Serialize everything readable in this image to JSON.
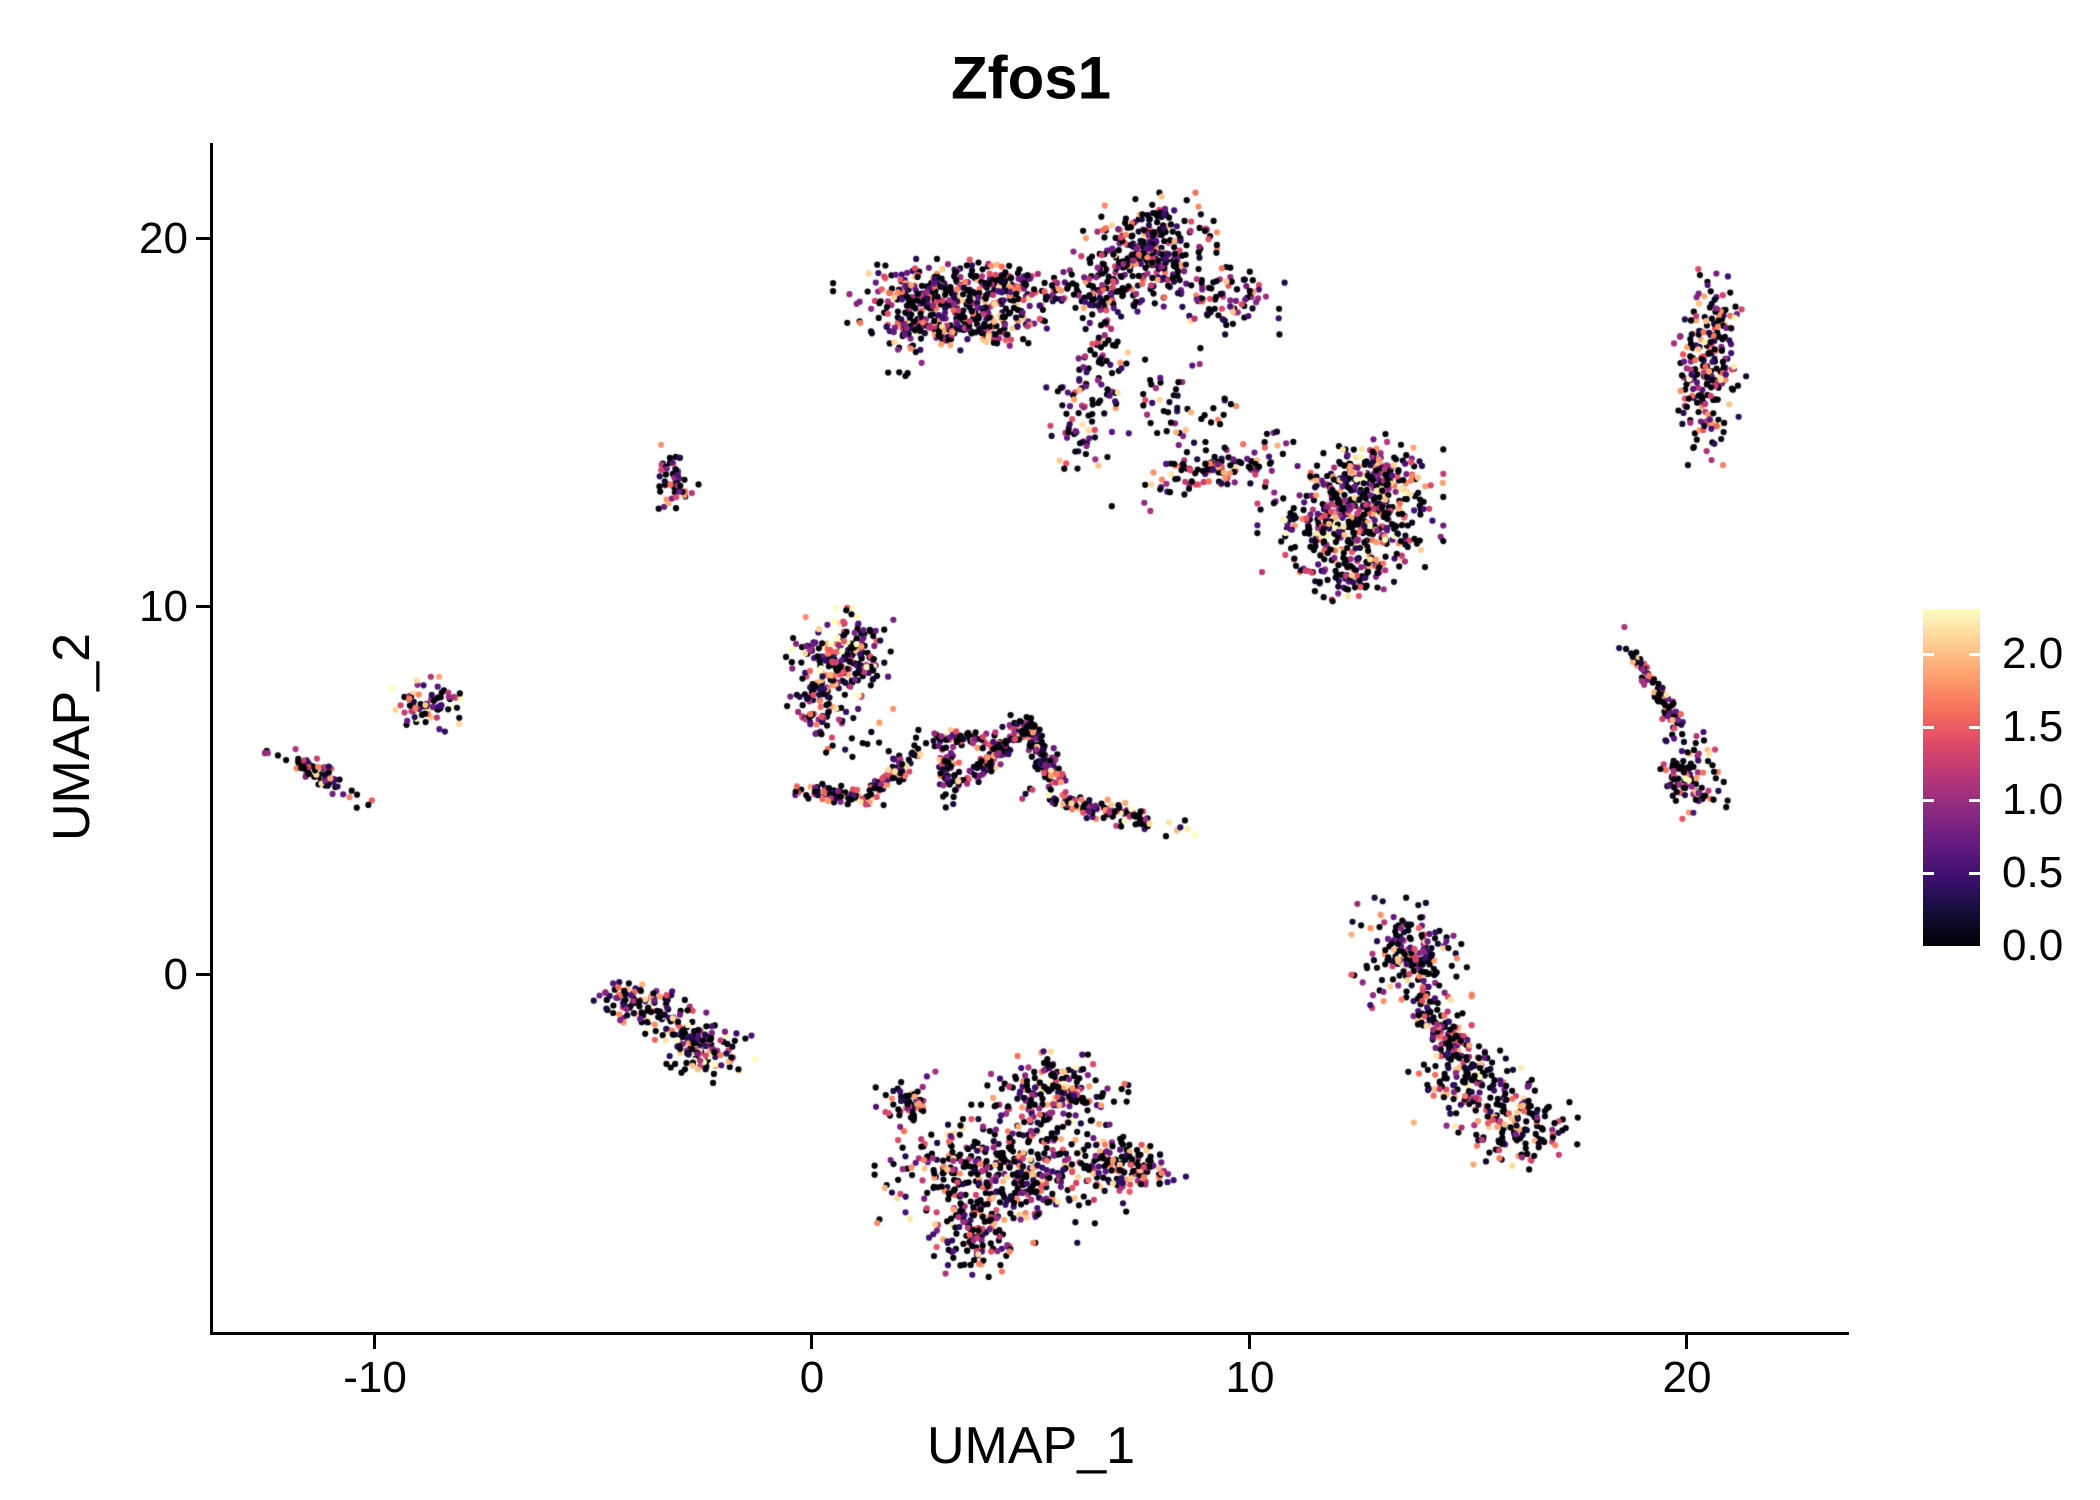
{
  "chart_data": {
    "type": "scatter",
    "title": "Zfos1",
    "xlabel": "UMAP_1",
    "ylabel": "UMAP_2",
    "xlim": [
      -13.7,
      23.7
    ],
    "ylim": [
      -9.7,
      22.6
    ],
    "x_ticks": [
      -10,
      0,
      10,
      20
    ],
    "x_tick_labels": [
      "-10",
      "0",
      "10",
      "20"
    ],
    "y_ticks": [
      20,
      10,
      0
    ],
    "y_tick_labels": [
      "20",
      "10",
      "0"
    ],
    "grid": false,
    "point_radius_px": 3.1,
    "seed": 42,
    "expression": {
      "zero_fraction": 0.36,
      "power": 1.3,
      "max": 2.2
    },
    "colorbar": {
      "position": "right",
      "vmin": 0.0,
      "vmax": 2.31,
      "tick_values": [
        2.0,
        1.5,
        1.0,
        0.5,
        0.0
      ],
      "tick_labels": [
        "2.0",
        "1.5",
        "1.0",
        "0.5",
        "0.0"
      ],
      "colormap": "magma",
      "stops": [
        [
          0.0,
          "#000004"
        ],
        [
          0.1,
          "#140e36"
        ],
        [
          0.2,
          "#3b0f70"
        ],
        [
          0.3,
          "#641a80"
        ],
        [
          0.4,
          "#8c2981"
        ],
        [
          0.5,
          "#b73779"
        ],
        [
          0.6,
          "#de4968"
        ],
        [
          0.7,
          "#f7705c"
        ],
        [
          0.8,
          "#fe9f6d"
        ],
        [
          0.9,
          "#fecf92"
        ],
        [
          1.0,
          "#fcfdbf"
        ]
      ]
    },
    "clusters": [
      {
        "name": "top-band",
        "blobs": [
          {
            "cx": 3.6,
            "cy": 18.6,
            "sx": 1.25,
            "sy": 0.34,
            "n": 380
          },
          {
            "cx": 3.3,
            "cy": 17.7,
            "sx": 1.0,
            "sy": 0.3,
            "n": 260
          },
          {
            "cx": 7.7,
            "cy": 19.7,
            "sx": 0.62,
            "sy": 0.62,
            "n": 300
          },
          {
            "cx": 6.7,
            "cy": 18.6,
            "sx": 0.35,
            "sy": 0.42,
            "n": 80
          },
          {
            "cx": 9.5,
            "cy": 18.35,
            "sx": 0.55,
            "sy": 0.38,
            "n": 90
          },
          {
            "cx": 6.6,
            "cy": 16.9,
            "sx": 0.28,
            "sy": 0.6,
            "n": 55
          },
          {
            "cx": 6.1,
            "cy": 15.1,
            "sx": 0.3,
            "sy": 0.75,
            "n": 60
          },
          {
            "cx": 8.3,
            "cy": 15.4,
            "sx": 0.75,
            "sy": 0.65,
            "n": 55
          }
        ]
      },
      {
        "name": "mid-right-blob",
        "blobs": [
          {
            "cx": 9.3,
            "cy": 13.75,
            "sx": 0.6,
            "sy": 0.22,
            "rot": 8,
            "n": 100
          },
          {
            "cx": 12.3,
            "cy": 12.4,
            "sx": 0.85,
            "sy": 0.75,
            "n": 430,
            "boost": 1.1
          },
          {
            "cx": 12.9,
            "cy": 13.6,
            "sx": 0.55,
            "sy": 0.45,
            "n": 140,
            "boost": 1.1
          },
          {
            "cx": 12.4,
            "cy": 10.9,
            "sx": 0.45,
            "sy": 0.35,
            "n": 90
          }
        ]
      },
      {
        "name": "right-vertical",
        "blobs": [
          {
            "cx": 20.6,
            "cy": 17.3,
            "sx": 0.36,
            "sy": 0.75,
            "n": 130,
            "boost": 1.1
          },
          {
            "cx": 20.4,
            "cy": 15.6,
            "sx": 0.32,
            "sy": 0.7,
            "n": 110,
            "boost": 1.1
          }
        ]
      },
      {
        "name": "small-upper-left",
        "blobs": [
          {
            "cx": -3.15,
            "cy": 13.5,
            "sx": 0.22,
            "sy": 0.36,
            "n": 60
          }
        ]
      },
      {
        "name": "left-small",
        "blobs": [
          {
            "cx": -8.8,
            "cy": 7.35,
            "sx": 0.38,
            "sy": 0.3,
            "n": 75,
            "boost": 1.15
          }
        ]
      },
      {
        "name": "far-left-streak",
        "blobs": [
          {
            "cx": -11.25,
            "cy": 5.45,
            "sx": 0.55,
            "sy": 0.13,
            "rot": -32,
            "n": 80
          }
        ]
      },
      {
        "name": "center-blob",
        "blobs": [
          {
            "cx": 0.65,
            "cy": 8.6,
            "sx": 0.5,
            "sy": 0.55,
            "n": 230,
            "boost": 1.25
          },
          {
            "cx": 0.05,
            "cy": 7.3,
            "sx": 0.25,
            "sy": 0.3,
            "n": 55
          },
          {
            "cx": 0.7,
            "cy": 6.6,
            "sx": 0.5,
            "sy": 0.3,
            "n": 22
          }
        ]
      },
      {
        "name": "center-branches",
        "blobs": [
          {
            "cx": 0.55,
            "cy": 4.9,
            "sx": 0.45,
            "sy": 0.1,
            "rot": -8,
            "n": 75
          },
          {
            "cx": 1.9,
            "cy": 5.5,
            "sx": 0.45,
            "sy": 0.12,
            "rot": 48,
            "n": 75
          },
          {
            "cx": 3.5,
            "cy": 6.45,
            "sx": 0.45,
            "sy": 0.12,
            "rot": 4,
            "n": 60
          },
          {
            "cx": 3.1,
            "cy": 5.6,
            "sx": 0.12,
            "sy": 0.42,
            "n": 55
          },
          {
            "cx": 4.1,
            "cy": 5.9,
            "sx": 0.55,
            "sy": 0.13,
            "rot": 50,
            "n": 95
          },
          {
            "cx": 4.85,
            "cy": 6.7,
            "sx": 0.16,
            "sy": 0.16,
            "n": 40
          },
          {
            "cx": 5.3,
            "cy": 5.9,
            "sx": 0.55,
            "sy": 0.13,
            "rot": -65,
            "n": 95
          },
          {
            "cx": 6.7,
            "cy": 4.45,
            "sx": 0.95,
            "sy": 0.13,
            "rot": -14,
            "n": 120,
            "boost": 1.15
          }
        ]
      },
      {
        "name": "bottom-left",
        "blobs": [
          {
            "cx": -3.9,
            "cy": -0.85,
            "sx": 0.5,
            "sy": 0.28,
            "rot": -20,
            "n": 110
          },
          {
            "cx": -2.55,
            "cy": -1.9,
            "sx": 0.55,
            "sy": 0.35,
            "rot": -30,
            "n": 150,
            "boost": 1.1
          }
        ]
      },
      {
        "name": "bottom-center",
        "blobs": [
          {
            "cx": 5.6,
            "cy": -3.2,
            "sx": 0.65,
            "sy": 0.45,
            "n": 200,
            "boost": 1.1
          },
          {
            "cx": 4.3,
            "cy": -5.4,
            "sx": 1.15,
            "sy": 0.75,
            "n": 480
          },
          {
            "cx": 7.2,
            "cy": -5.2,
            "sx": 0.7,
            "sy": 0.35,
            "rot": -20,
            "n": 140
          },
          {
            "cx": 3.7,
            "cy": -7.1,
            "sx": 0.45,
            "sy": 0.45,
            "n": 110
          },
          {
            "cx": 2.2,
            "cy": -3.5,
            "sx": 0.3,
            "sy": 0.35,
            "n": 50
          }
        ]
      },
      {
        "name": "bottom-right-s",
        "blobs": [
          {
            "cx": 13.7,
            "cy": 0.6,
            "sx": 0.55,
            "sy": 0.6,
            "n": 200
          },
          {
            "cx": 14.4,
            "cy": -1.45,
            "sx": 0.6,
            "sy": 0.25,
            "rot": -60,
            "n": 110
          },
          {
            "cx": 15.0,
            "cy": -2.9,
            "sx": 0.55,
            "sy": 0.5,
            "n": 130,
            "boost": 1.1
          },
          {
            "cx": 16.0,
            "cy": -4.1,
            "sx": 0.6,
            "sy": 0.5,
            "n": 140
          }
        ]
      },
      {
        "name": "right-diagonal",
        "blobs": [
          {
            "cx": 19.35,
            "cy": 7.6,
            "sx": 0.8,
            "sy": 0.1,
            "rot": -61,
            "n": 95
          },
          {
            "cx": 20.1,
            "cy": 5.35,
            "sx": 0.33,
            "sy": 0.5,
            "n": 100,
            "boost": 1.2
          }
        ]
      },
      {
        "name": "strays",
        "blobs": [
          {
            "cx": 10.5,
            "cy": 14.5,
            "sx": 0.3,
            "sy": 0.15,
            "n": 8
          },
          {
            "cx": 7.8,
            "cy": 13.2,
            "sx": 0.4,
            "sy": 0.3,
            "n": 10
          },
          {
            "cx": 2.0,
            "cy": 16.5,
            "sx": 0.2,
            "sy": 0.2,
            "n": 6
          }
        ]
      }
    ]
  }
}
